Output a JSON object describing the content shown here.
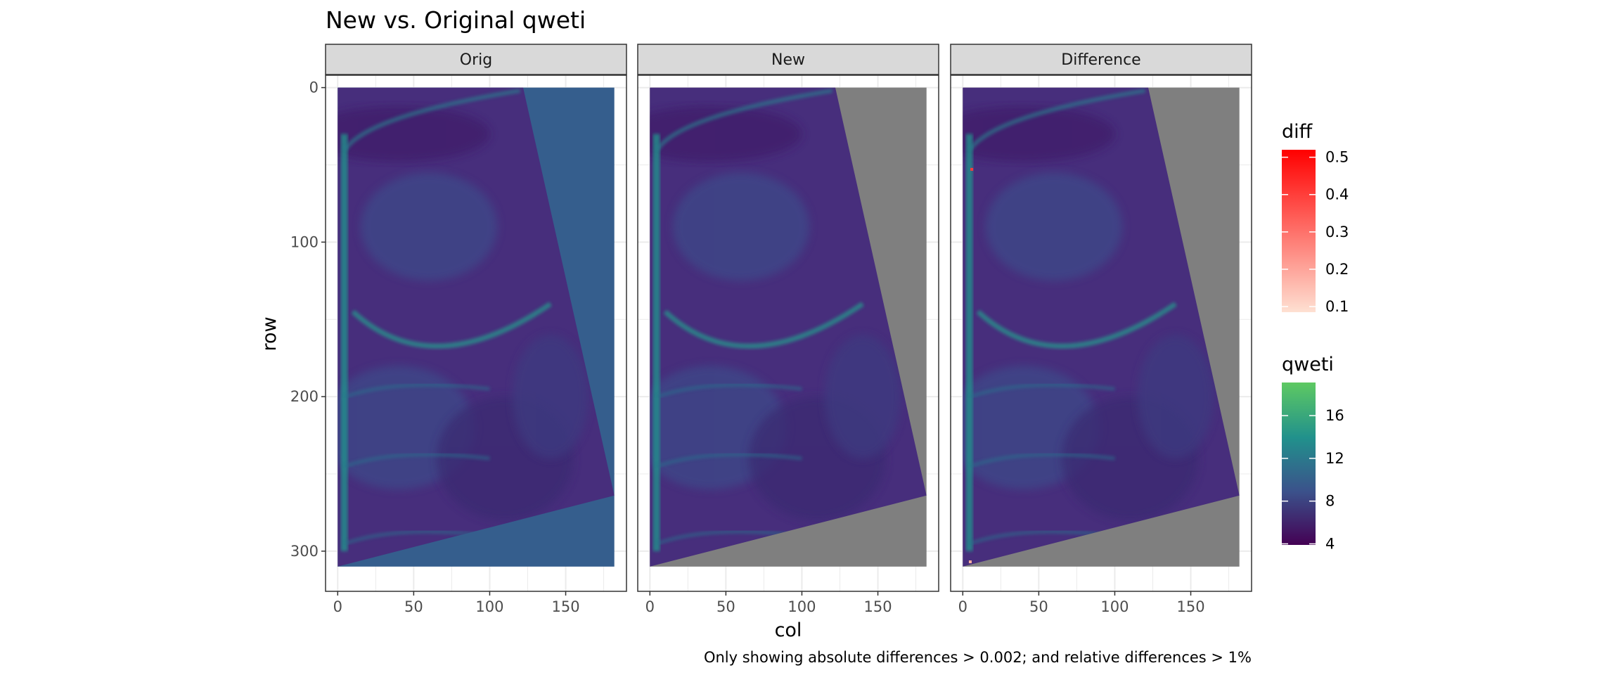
{
  "chart_data": {
    "type": "heatmap",
    "title": "New vs. Original qweti",
    "xlabel": "col",
    "ylabel": "row",
    "caption": "Only showing absolute differences > 0.002; and relative differences > 1%",
    "facets": [
      "Orig",
      "New",
      "Difference"
    ],
    "x_ticks": [
      0,
      50,
      100,
      150
    ],
    "y_ticks": [
      0,
      100,
      200,
      300
    ],
    "xlim": [
      -8,
      190
    ],
    "ylim": [
      -8,
      326
    ],
    "grid": true,
    "y_reversed": true,
    "raster_extent": {
      "col": [
        0,
        182
      ],
      "row": [
        0,
        310
      ]
    },
    "data_region_corners": [
      [
        0,
        0
      ],
      [
        122,
        0
      ],
      [
        182,
        264
      ],
      [
        0,
        310
      ]
    ],
    "background": {
      "Orig": "#355e8d",
      "New": "#7f7f7f",
      "Difference": "#7f7f7f"
    },
    "legends": {
      "diff": {
        "title": "diff",
        "ticks": [
          "0.5",
          "0.4",
          "0.3",
          "0.2",
          "0.1"
        ],
        "tick_values": [
          0.5,
          0.4,
          0.3,
          0.2,
          0.1
        ],
        "range": [
          0.085,
          0.52
        ],
        "colors": [
          "#fee0d2",
          "#ff0000"
        ]
      },
      "qweti": {
        "title": "qweti",
        "ticks": [
          "16",
          "12",
          "8",
          "4"
        ],
        "tick_values": [
          16,
          12,
          8,
          4
        ],
        "range": [
          3.9,
          19.1
        ],
        "colors": [
          "#440154",
          "#3b528b",
          "#21918c",
          "#5ec962"
        ]
      }
    },
    "value_range": [
      4,
      19
    ],
    "features": {
      "arc_row_at_center": 172,
      "arc_col_center": 62,
      "left_edge_bright": true
    }
  }
}
